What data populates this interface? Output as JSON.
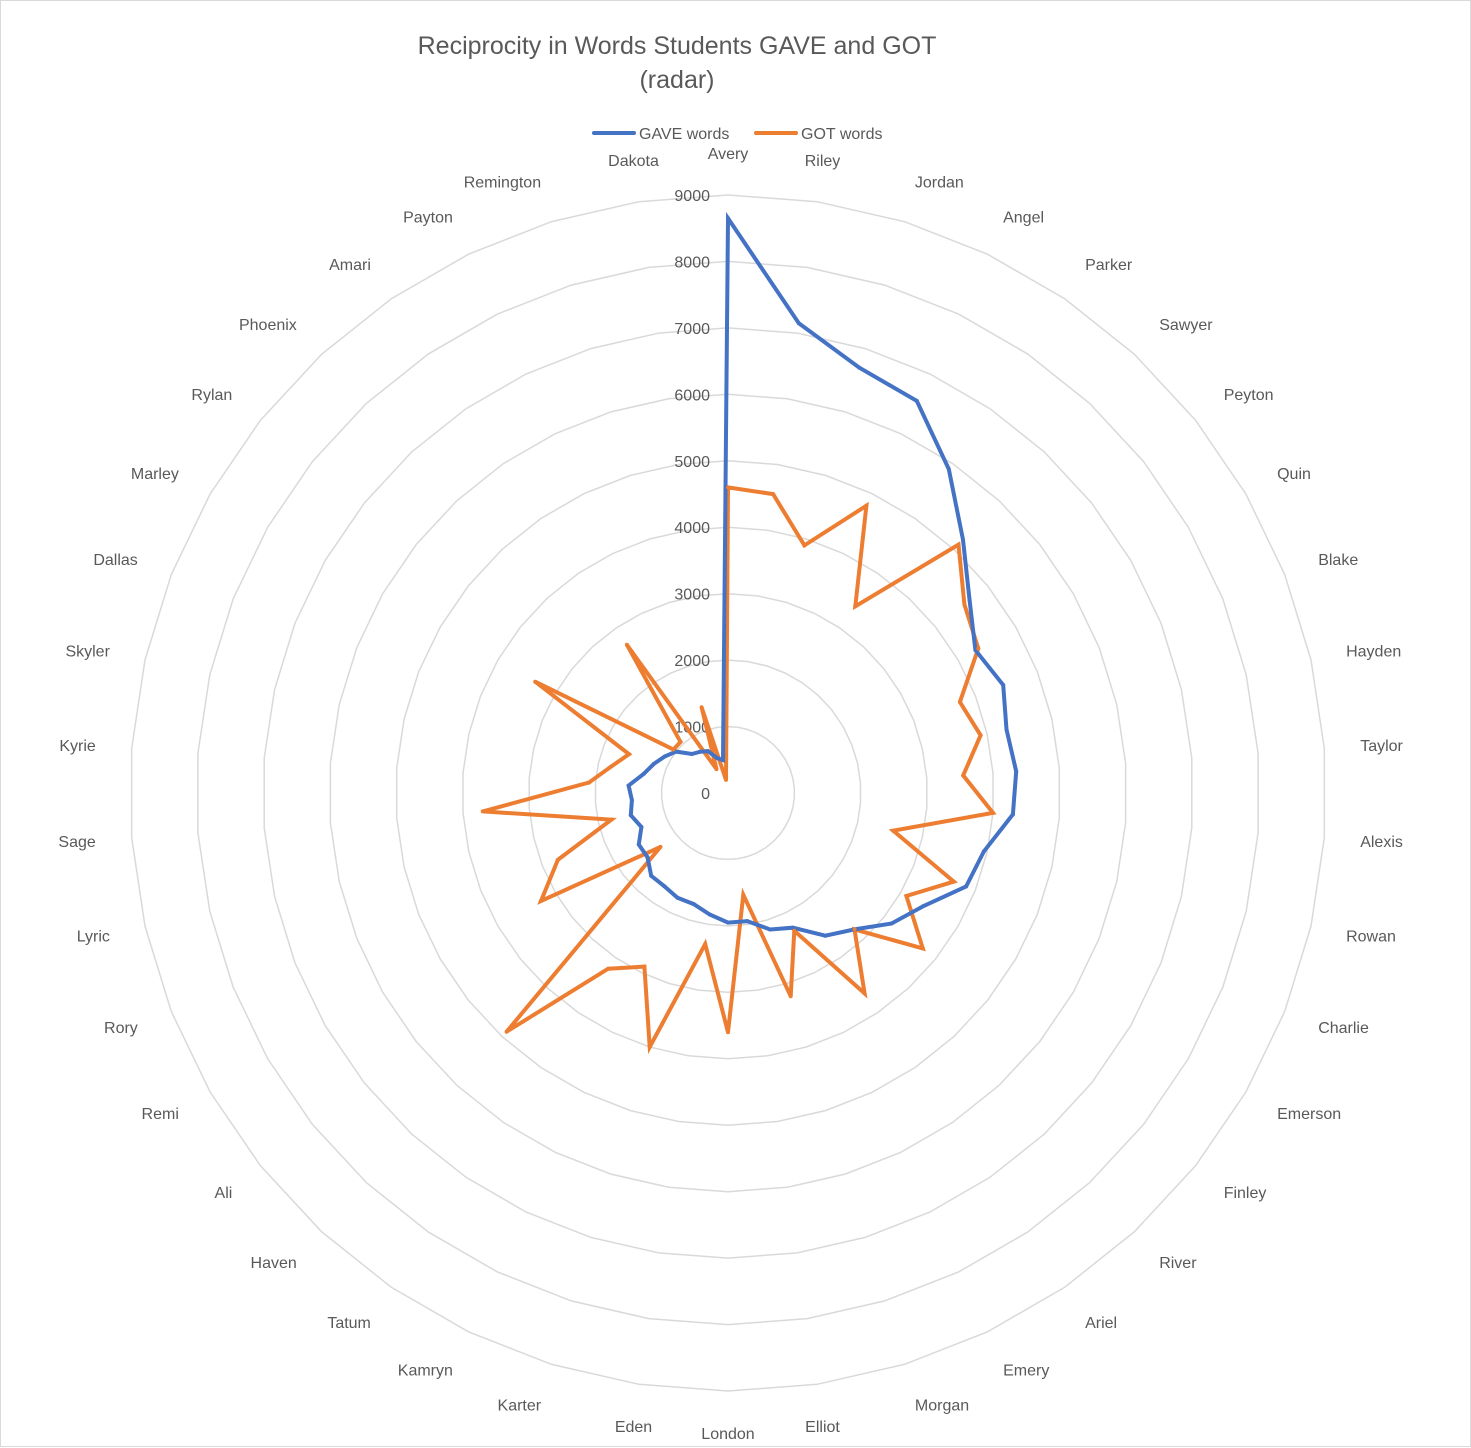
{
  "chart_data": {
    "type": "radar",
    "title": "Reciprocity in Words Students GAVE and GOT (radar)",
    "title_lines": [
      "Reciprocity in Words Students GAVE and GOT",
      "(radar)"
    ],
    "legend_position": "top",
    "grid": true,
    "rlim": [
      0,
      9000
    ],
    "ticks": [
      "0",
      "1000",
      "2000",
      "3000",
      "4000",
      "5000",
      "6000",
      "7000",
      "8000",
      "9000"
    ],
    "categories": [
      "Avery",
      "Riley",
      "Jordan",
      "Angel",
      "Parker",
      "Sawyer",
      "Peyton",
      "Quin",
      "Blake",
      "Hayden",
      "Taylor",
      "Alexis",
      "Rowan",
      "Charlie",
      "Emerson",
      "Finley",
      "River",
      "Ariel",
      "Emery",
      "Morgan",
      "Elliot",
      "London",
      "Eden",
      "Karter",
      "Kamryn",
      "Tatum",
      "Haven",
      "Ali",
      "Remi",
      "Rory",
      "Lyric",
      "Sage",
      "Kyrie",
      "Skyler",
      "Dallas",
      "Marley",
      "Rylan",
      "Phoenix",
      "Amari",
      "Payton",
      "Remington",
      "Dakota"
    ],
    "series": [
      {
        "name": "GAVE words",
        "color": "#4472c4",
        "values": [
          8650,
          7150,
          6700,
          6550,
          5900,
          5200,
          4650,
          4300,
          4450,
          4300,
          4350,
          4300,
          3950,
          3850,
          3400,
          3150,
          2800,
          2600,
          2250,
          2150,
          1950,
          1950,
          1850,
          1750,
          1750,
          1700,
          1700,
          1550,
          1550,
          1400,
          1500,
          1450,
          1500,
          1300,
          1200,
          1100,
          1000,
          800,
          750,
          700,
          550,
          500
        ]
      },
      {
        "name": "GOT words",
        "color": "#ed7d31",
        "values": [
          4600,
          4550,
          3900,
          4800,
          3400,
          5100,
          4550,
          4350,
          3750,
          3900,
          3550,
          4000,
          2550,
          3650,
          3100,
          3750,
          2800,
          3650,
          2300,
          3200,
          1550,
          3600,
          2300,
          4000,
          2900,
          3200,
          4900,
          1300,
          3250,
          2750,
          1800,
          3700,
          2100,
          1800,
          1600,
          3350,
          1050,
          1050,
          2700,
          400,
          1350,
          200
        ]
      }
    ]
  }
}
